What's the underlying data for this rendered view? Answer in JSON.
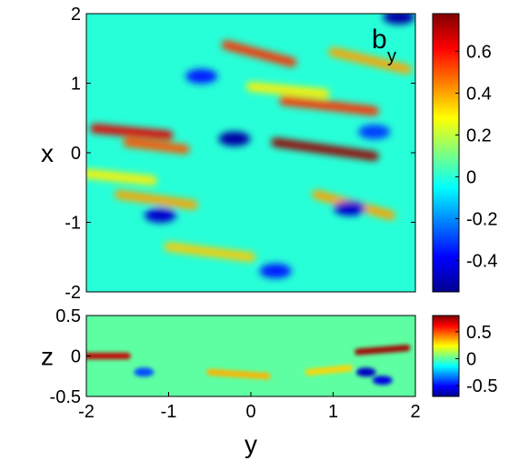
{
  "chart_data": [
    {
      "type": "heatmap",
      "field": {
        "symbol": "b",
        "subscript": "y"
      },
      "xlabel": "y",
      "ylabel": "x",
      "xlim": [
        -2,
        2
      ],
      "ylim": [
        -2,
        2
      ],
      "xticks": [],
      "yticks": [
        "2",
        "1",
        "0",
        "-1",
        "-2"
      ],
      "colormap": "jet",
      "clim": [
        -0.55,
        0.78
      ],
      "colorbar_ticks": [
        "0.6",
        "0.4",
        "0.2",
        "0",
        "-0.2",
        "-0.4"
      ],
      "colorbar_tick_values": [
        0.6,
        0.4,
        0.2,
        0,
        -0.2,
        -0.4
      ],
      "streaks": [
        {
          "y0": -1.9,
          "x0": 0.35,
          "y1": -1.0,
          "x1": 0.25,
          "value": 0.65
        },
        {
          "y0": -1.5,
          "x0": 0.15,
          "y1": -0.8,
          "x1": 0.05,
          "value": 0.5
        },
        {
          "y0": 0.3,
          "x0": 0.15,
          "y1": 1.5,
          "x1": -0.05,
          "value": 0.75
        },
        {
          "y0": 0.4,
          "x0": 0.75,
          "y1": 1.5,
          "x1": 0.6,
          "value": 0.55
        },
        {
          "y0": -0.3,
          "x0": 1.55,
          "y1": 0.5,
          "x1": 1.3,
          "value": 0.55
        },
        {
          "y0": -1.6,
          "x0": -0.6,
          "y1": -0.7,
          "x1": -0.75,
          "value": 0.4
        },
        {
          "y0": 0.8,
          "x0": -0.6,
          "y1": 1.7,
          "x1": -0.9,
          "value": 0.4
        },
        {
          "y0": -1.0,
          "x0": -1.35,
          "y1": 0.0,
          "x1": -1.5,
          "value": 0.35
        },
        {
          "y0": 1.0,
          "x0": 1.45,
          "y1": 1.9,
          "x1": 1.2,
          "value": 0.4
        },
        {
          "y0": -2.0,
          "x0": -0.3,
          "y1": -1.2,
          "x1": -0.4,
          "value": 0.3
        },
        {
          "y0": 0.0,
          "x0": 0.95,
          "y1": 0.9,
          "x1": 0.85,
          "value": 0.3
        }
      ],
      "dark_spots": [
        {
          "y": -0.2,
          "x": 0.2,
          "value": -0.5
        },
        {
          "y": -1.1,
          "x": -0.9,
          "value": -0.45
        },
        {
          "y": 1.8,
          "x": 1.95,
          "value": -0.5
        },
        {
          "y": 1.2,
          "x": -0.8,
          "value": -0.45
        },
        {
          "y": 0.3,
          "x": -1.7,
          "value": -0.35
        },
        {
          "y": -0.6,
          "x": 1.1,
          "value": -0.35
        },
        {
          "y": 1.5,
          "x": 0.3,
          "value": -0.3
        }
      ]
    },
    {
      "type": "heatmap",
      "xlabel": "y",
      "ylabel": "z",
      "xlim": [
        -2,
        2
      ],
      "ylim": [
        -0.5,
        0.5
      ],
      "xticks": [
        "-2",
        "-1",
        "0",
        "1",
        "2"
      ],
      "xtick_values": [
        -2,
        -1,
        0,
        1,
        2
      ],
      "yticks": [
        "0.5",
        "0",
        "-0.5"
      ],
      "ytick_values": [
        0.5,
        0,
        -0.5
      ],
      "colormap": "jet",
      "clim": [
        -0.7,
        0.8
      ],
      "colorbar_ticks": [
        "0.5",
        "0",
        "-0.5"
      ],
      "colorbar_tick_values": [
        0.5,
        0,
        -0.5
      ],
      "streaks": [
        {
          "y0": -2.0,
          "x0": 0.0,
          "y1": -1.5,
          "x1": 0.0,
          "value": 0.7
        },
        {
          "y0": 1.3,
          "x0": 0.05,
          "y1": 1.9,
          "x1": 0.1,
          "value": 0.75
        },
        {
          "y0": -0.5,
          "x0": -0.2,
          "y1": 0.2,
          "x1": -0.25,
          "value": 0.35
        },
        {
          "y0": 0.7,
          "x0": -0.2,
          "y1": 1.2,
          "x1": -0.15,
          "value": 0.3
        }
      ],
      "dark_spots": [
        {
          "y": -1.3,
          "x": -0.2,
          "value": -0.4
        },
        {
          "y": 1.4,
          "x": -0.2,
          "value": -0.6
        },
        {
          "y": 1.6,
          "x": -0.3,
          "value": -0.55
        }
      ]
    }
  ]
}
